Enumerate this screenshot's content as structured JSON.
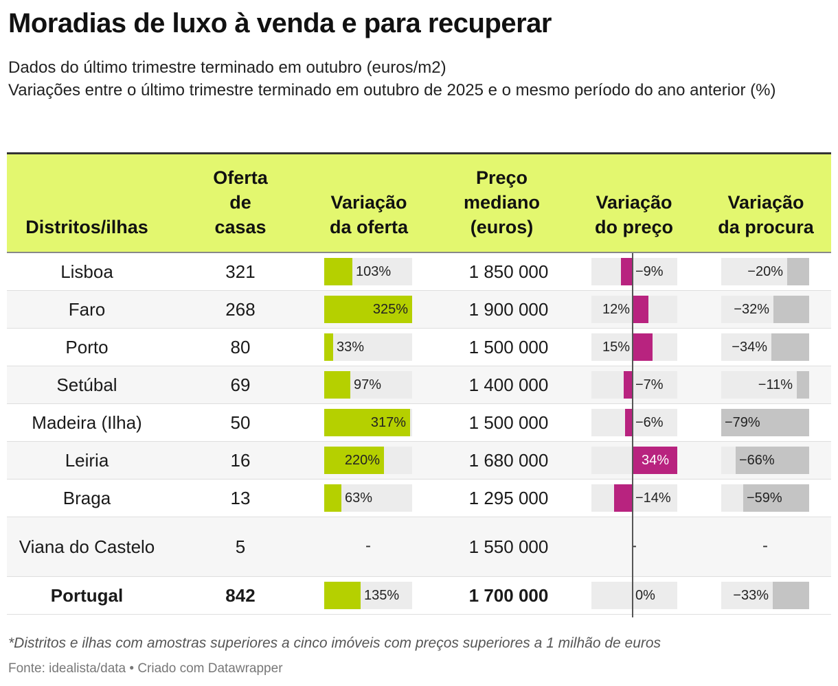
{
  "title": "Moradias de luxo à venda e para recuperar",
  "subtitle_lines": [
    "Dados do último trimestre terminado em outubro (euros/m2)",
    "Variações entre o último trimestre terminado em outubro de 2025 e o mesmo período do ano anterior (%)"
  ],
  "headers": {
    "district": "Distritos/ilhas",
    "offer": "Oferta de casas",
    "offer_var": "Variação da oferta",
    "price": "Preço mediano (euros)",
    "price_var": "Variação do preço",
    "demand_var": "Variação da procura"
  },
  "colors": {
    "header_bg": "#e3f76f",
    "offer_bar": "#b5d000",
    "price_bar": "#b8237f",
    "demand_bar": "#c4c4c4",
    "track": "#ececec"
  },
  "chart_data": {
    "type": "table",
    "columns": [
      "Distritos/ilhas",
      "Oferta de casas",
      "Variação da oferta",
      "Preço mediano (euros)",
      "Variação do preço",
      "Variação da procura"
    ],
    "ranges": {
      "offer_var": [
        0,
        325
      ],
      "price_var": [
        -34,
        34
      ],
      "demand_var": [
        -79,
        0
      ]
    },
    "rows": [
      {
        "district": "Lisboa",
        "offer": "321",
        "offer_var": 103,
        "offer_var_label": "103%",
        "price": "1 850 000",
        "price_var": -9,
        "price_var_label": "−9%",
        "demand_var": -20,
        "demand_var_label": "−20%"
      },
      {
        "district": "Faro",
        "offer": "268",
        "offer_var": 325,
        "offer_var_label": "325%",
        "price": "1 900 000",
        "price_var": 12,
        "price_var_label": "12%",
        "demand_var": -32,
        "demand_var_label": "−32%"
      },
      {
        "district": "Porto",
        "offer": "80",
        "offer_var": 33,
        "offer_var_label": "33%",
        "price": "1 500 000",
        "price_var": 15,
        "price_var_label": "15%",
        "demand_var": -34,
        "demand_var_label": "−34%"
      },
      {
        "district": "Setúbal",
        "offer": "69",
        "offer_var": 97,
        "offer_var_label": "97%",
        "price": "1 400 000",
        "price_var": -7,
        "price_var_label": "−7%",
        "demand_var": -11,
        "demand_var_label": "−11%"
      },
      {
        "district": "Madeira (Ilha)",
        "offer": "50",
        "offer_var": 317,
        "offer_var_label": "317%",
        "price": "1 500 000",
        "price_var": -6,
        "price_var_label": "−6%",
        "demand_var": -79,
        "demand_var_label": "−79%"
      },
      {
        "district": "Leiria",
        "offer": "16",
        "offer_var": 220,
        "offer_var_label": "220%",
        "price": "1 680 000",
        "price_var": 34,
        "price_var_label": "34%",
        "demand_var": -66,
        "demand_var_label": "−66%"
      },
      {
        "district": "Braga",
        "offer": "13",
        "offer_var": 63,
        "offer_var_label": "63%",
        "price": "1 295 000",
        "price_var": -14,
        "price_var_label": "−14%",
        "demand_var": -59,
        "demand_var_label": "−59%"
      },
      {
        "district": "Viana do Castelo",
        "offer": "5",
        "offer_var": null,
        "offer_var_label": "-",
        "price": "1 550 000",
        "price_var": null,
        "price_var_label": "-",
        "demand_var": null,
        "demand_var_label": "-"
      },
      {
        "district": "Portugal",
        "offer": "842",
        "offer_var": 135,
        "offer_var_label": "135%",
        "price": "1 700 000",
        "price_var": 0,
        "price_var_label": "0%",
        "demand_var": -33,
        "demand_var_label": "−33%",
        "total": true
      }
    ]
  },
  "footnote": "*Distritos e ilhas com amostras superiores a cinco imóveis com preços superiores a 1 milhão de euros",
  "source": "Fonte: idealista/data • Criado com Datawrapper"
}
